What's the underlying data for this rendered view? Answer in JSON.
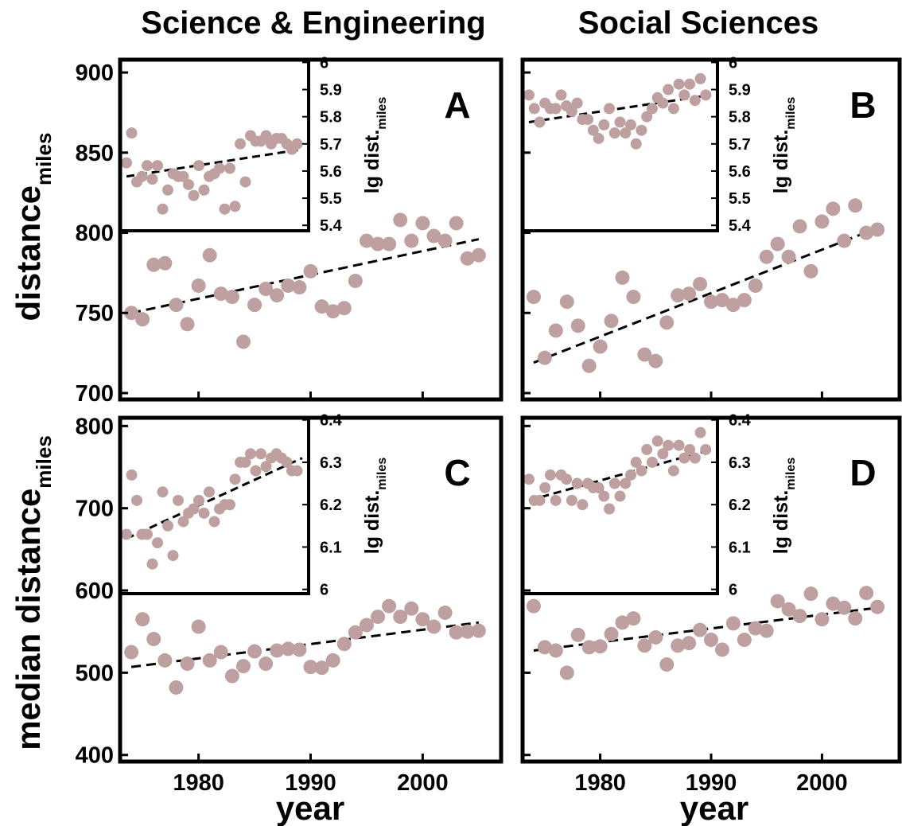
{
  "figure": {
    "column_titles": [
      "Science & Engineering",
      "Social Sciences"
    ],
    "ylabel_top": {
      "main": "distance",
      "sub": "miles"
    },
    "ylabel_bottom": {
      "main": "median distance",
      "sub": "miles"
    },
    "xlabel": "year",
    "inset_ylabel": {
      "main": "lg dist.",
      "sub": "miles"
    }
  },
  "colors": {
    "point": "#bfa0a0",
    "frame": "#000000",
    "trend": "#000000"
  },
  "chart_data": [
    {
      "panel": "A",
      "type": "scatter",
      "xlabel": "year",
      "ylabel": "distance miles",
      "xlim": [
        1973,
        2007
      ],
      "ylim": [
        696,
        908
      ],
      "xticks": [
        1980,
        1990,
        2000
      ],
      "yticks": [
        700,
        750,
        800,
        850,
        900
      ],
      "x": [
        1974,
        1975,
        1976,
        1977,
        1978,
        1979,
        1980,
        1981,
        1982,
        1983,
        1984,
        1985,
        1986,
        1987,
        1988,
        1989,
        1990,
        1991,
        1992,
        1993,
        1994,
        1995,
        1996,
        1997,
        1998,
        1999,
        2000,
        2001,
        2002,
        2003,
        2004,
        2005
      ],
      "y": [
        750,
        746,
        780,
        781,
        755,
        743,
        767,
        786,
        762,
        760,
        732,
        755,
        765,
        761,
        767,
        766,
        776,
        754,
        751,
        753,
        770,
        795,
        793,
        793,
        808,
        795,
        806,
        798,
        795,
        806,
        784,
        786
      ],
      "trend": {
        "x": [
          1974,
          2005
        ],
        "y": [
          750,
          796
        ]
      },
      "inset": {
        "type": "scatter",
        "ylabel": "lg dist. miles",
        "xlim": [
          1973,
          1990
        ],
        "ylim": [
          5.38,
          6.01
        ],
        "yticks": [
          5.4,
          5.5,
          5.6,
          5.7,
          5.8,
          5.9,
          6
        ],
        "x": [
          1973,
          1974,
          1975,
          1976,
          1977,
          1978,
          1979,
          1980,
          1981,
          1982,
          1983,
          1984,
          1985,
          1986,
          1987,
          1988,
          1989
        ],
        "y": [
          5.63,
          5.56,
          5.62,
          5.62,
          5.53,
          5.58,
          5.55,
          5.62,
          5.58,
          5.61,
          5.61,
          5.7,
          5.73,
          5.71,
          5.7,
          5.72,
          5.68
        ],
        "x2": [
          1973.5,
          1974.5,
          1975.5,
          1976.5,
          1977.5,
          1978.5,
          1979.5,
          1980.5,
          1981.5,
          1982.5,
          1983.5,
          1984.5,
          1985.5,
          1986.5,
          1987.5,
          1988.5,
          1989.5
        ],
        "y2": [
          5.74,
          5.58,
          5.57,
          5.46,
          5.59,
          5.58,
          5.51,
          5.53,
          5.59,
          5.46,
          5.47,
          5.56,
          5.71,
          5.73,
          5.72,
          5.7,
          5.7
        ],
        "trend": {
          "x": [
            1973,
            1990
          ],
          "y": [
            5.58,
            5.68
          ]
        }
      }
    },
    {
      "panel": "B",
      "type": "scatter",
      "xlabel": "year",
      "ylabel": "distance miles",
      "xlim": [
        1973,
        2007
      ],
      "ylim": [
        696,
        908
      ],
      "xticks": [
        1980,
        1990,
        2000
      ],
      "yticks": [
        700,
        750,
        800,
        850,
        900
      ],
      "x": [
        1974,
        1975,
        1976,
        1977,
        1978,
        1979,
        1980,
        1981,
        1982,
        1983,
        1984,
        1985,
        1986,
        1987,
        1988,
        1989,
        1990,
        1991,
        1992,
        1993,
        1994,
        1995,
        1996,
        1997,
        1998,
        1999,
        2000,
        2001,
        2002,
        2003,
        2004,
        2005
      ],
      "y": [
        760,
        722,
        739,
        757,
        742,
        717,
        729,
        745,
        772,
        760,
        724,
        720,
        744,
        761,
        762,
        768,
        757,
        758,
        755,
        758,
        767,
        785,
        793,
        785,
        804,
        776,
        807,
        815,
        795,
        817,
        800,
        802
      ],
      "trend": {
        "x": [
          1974,
          2005
        ],
        "y": [
          719,
          803
        ]
      },
      "inset": {
        "type": "scatter",
        "ylabel": "lg dist. miles",
        "xlim": [
          1973,
          1990
        ],
        "ylim": [
          5.38,
          6.01
        ],
        "yticks": [
          5.4,
          5.5,
          5.6,
          5.7,
          5.8,
          5.9,
          6
        ],
        "x": [
          1973,
          1974,
          1975,
          1976,
          1977,
          1978,
          1979,
          1980,
          1981,
          1982,
          1983,
          1984,
          1985,
          1986,
          1987,
          1988,
          1989
        ],
        "y": [
          5.88,
          5.78,
          5.83,
          5.88,
          5.82,
          5.79,
          5.75,
          5.77,
          5.74,
          5.74,
          5.7,
          5.8,
          5.87,
          5.9,
          5.92,
          5.92,
          5.94
        ],
        "x2": [
          1973.5,
          1974.5,
          1975.5,
          1976.5,
          1977.5,
          1978.5,
          1979.5,
          1980.5,
          1981.5,
          1982.5,
          1983.5,
          1984.5,
          1985.5,
          1986.5,
          1987.5,
          1988.5,
          1989.5
        ],
        "y2": [
          5.83,
          5.85,
          5.83,
          5.84,
          5.85,
          5.79,
          5.72,
          5.83,
          5.78,
          5.77,
          5.75,
          5.83,
          5.85,
          5.83,
          5.88,
          5.86,
          5.88
        ],
        "trend": {
          "x": [
            1973,
            1990
          ],
          "y": [
            5.78,
            5.88
          ]
        }
      }
    },
    {
      "panel": "C",
      "type": "scatter",
      "xlabel": "year",
      "ylabel": "median distance miles",
      "xlim": [
        1973,
        2007
      ],
      "ylim": [
        392,
        810
      ],
      "xticks": [
        1980,
        1990,
        2000
      ],
      "yticks": [
        400,
        500,
        600,
        700,
        800
      ],
      "x": [
        1974,
        1975,
        1976,
        1977,
        1978,
        1979,
        1980,
        1981,
        1982,
        1983,
        1984,
        1985,
        1986,
        1987,
        1988,
        1989,
        1990,
        1991,
        1992,
        1993,
        1994,
        1995,
        1996,
        1997,
        1998,
        1999,
        2000,
        2001,
        2002,
        2003,
        2004,
        2005
      ],
      "y": [
        525,
        565,
        541,
        515,
        482,
        511,
        556,
        515,
        525,
        496,
        508,
        526,
        511,
        527,
        529,
        528,
        507,
        506,
        515,
        535,
        549,
        558,
        568,
        581,
        568,
        578,
        565,
        556,
        573,
        549,
        550,
        551
      ],
      "trend": {
        "x": [
          1974,
          2005
        ],
        "y": [
          507,
          561
        ]
      },
      "inset": {
        "type": "scatter",
        "ylabel": "lg dist. miles",
        "xlim": [
          1973,
          1990
        ],
        "ylim": [
          5.99,
          6.405
        ],
        "yticks": [
          6,
          6.1,
          6.2,
          6.3,
          6.4
        ],
        "x": [
          1973,
          1974,
          1975,
          1976,
          1977,
          1978,
          1979,
          1980,
          1981,
          1982,
          1983,
          1984,
          1985,
          1986,
          1987,
          1988,
          1989
        ],
        "y": [
          6.13,
          6.21,
          6.13,
          6.11,
          6.15,
          6.21,
          6.18,
          6.21,
          6.23,
          6.19,
          6.2,
          6.3,
          6.32,
          6.32,
          6.31,
          6.31,
          6.28
        ],
        "x2": [
          1973.5,
          1974.5,
          1975.5,
          1976.5,
          1977.5,
          1978.5,
          1979.5,
          1980.5,
          1981.5,
          1982.5,
          1983.5,
          1984.5,
          1985.5,
          1986.5,
          1987.5,
          1988.5,
          1989.5
        ],
        "y2": [
          6.27,
          6.13,
          6.06,
          6.23,
          6.08,
          6.16,
          6.19,
          6.18,
          6.16,
          6.2,
          6.26,
          6.3,
          6.28,
          6.29,
          6.32,
          6.3,
          6.28
        ],
        "trend": {
          "x": [
            1973,
            1990
          ],
          "y": [
            6.12,
            6.31
          ]
        }
      }
    },
    {
      "panel": "D",
      "type": "scatter",
      "xlabel": "year",
      "ylabel": "median distance miles",
      "xlim": [
        1973,
        2007
      ],
      "ylim": [
        392,
        810
      ],
      "xticks": [
        1980,
        1990,
        2000
      ],
      "yticks": [
        400,
        500,
        600,
        700,
        800
      ],
      "x": [
        1974,
        1975,
        1976,
        1977,
        1978,
        1979,
        1980,
        1981,
        1982,
        1983,
        1984,
        1985,
        1986,
        1987,
        1988,
        1989,
        1990,
        1991,
        1992,
        1993,
        1994,
        1995,
        1996,
        1997,
        1998,
        1999,
        2000,
        2001,
        2002,
        2003,
        2004,
        2005
      ],
      "y": [
        581,
        531,
        527,
        500,
        546,
        531,
        532,
        547,
        561,
        566,
        533,
        543,
        510,
        533,
        536,
        552,
        540,
        528,
        560,
        540,
        554,
        551,
        587,
        577,
        569,
        596,
        565,
        584,
        579,
        566,
        597,
        580
      ],
      "trend": {
        "x": [
          1974,
          2005
        ],
        "y": [
          527,
          579
        ]
      },
      "inset": {
        "type": "scatter",
        "ylabel": "lg dist. miles",
        "xlim": [
          1973,
          1990
        ],
        "ylim": [
          5.99,
          6.405
        ],
        "yticks": [
          6,
          6.1,
          6.2,
          6.3,
          6.4
        ],
        "x": [
          1973,
          1974,
          1975,
          1976,
          1977,
          1978,
          1979,
          1980,
          1981,
          1982,
          1983,
          1984,
          1985,
          1986,
          1987,
          1988,
          1989
        ],
        "y": [
          6.26,
          6.21,
          6.27,
          6.27,
          6.21,
          6.2,
          6.24,
          6.22,
          6.25,
          6.25,
          6.3,
          6.33,
          6.35,
          6.34,
          6.34,
          6.33,
          6.37
        ],
        "x2": [
          1973.5,
          1974.5,
          1975.5,
          1976.5,
          1977.5,
          1978.5,
          1979.5,
          1980.5,
          1981.5,
          1982.5,
          1983.5,
          1984.5,
          1985.5,
          1986.5,
          1987.5,
          1988.5,
          1989.5
        ],
        "y2": [
          6.21,
          6.24,
          6.21,
          6.26,
          6.25,
          6.25,
          6.24,
          6.19,
          6.22,
          6.27,
          6.28,
          6.3,
          6.32,
          6.28,
          6.31,
          6.31,
          6.33
        ],
        "trend": {
          "x": [
            1973,
            1990
          ],
          "y": [
            6.21,
            6.33
          ]
        }
      }
    }
  ]
}
